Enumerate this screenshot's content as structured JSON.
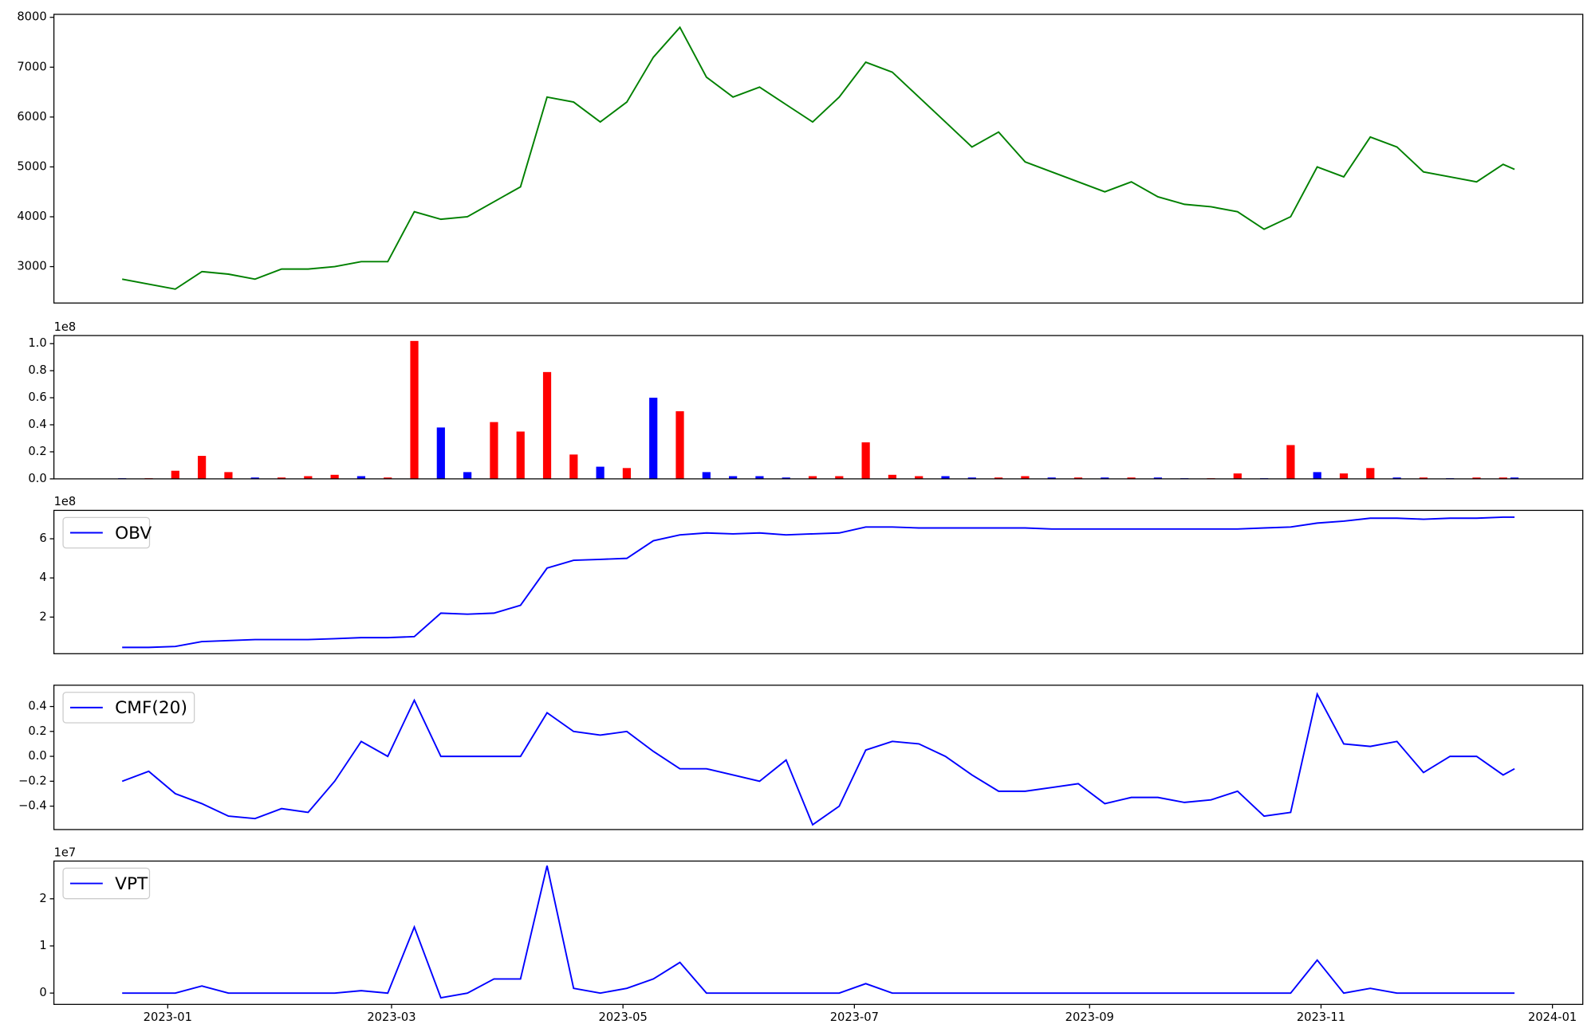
{
  "chart_data": [
    {
      "type": "line",
      "x": [
        -12,
        -5,
        2,
        9,
        16,
        23,
        30,
        37,
        44,
        51,
        58,
        65,
        72,
        79,
        86,
        93,
        100,
        107,
        114,
        121,
        128,
        135,
        142,
        149,
        156,
        163,
        170,
        177,
        184,
        191,
        198,
        205,
        212,
        219,
        226,
        233,
        240,
        247,
        254,
        261,
        268,
        275,
        282,
        289,
        296,
        303,
        310,
        317,
        324,
        331,
        338,
        345,
        352,
        355
      ],
      "series": [
        {
          "color": "#008000",
          "values": [
            2750,
            2650,
            2550,
            2900,
            2850,
            2750,
            2950,
            2950,
            3000,
            3100,
            3100,
            4100,
            3950,
            4000,
            4300,
            4600,
            6400,
            6300,
            5900,
            6300,
            7200,
            7800,
            6800,
            6400,
            6600,
            6250,
            5900,
            6400,
            7100,
            6900,
            6400,
            5900,
            5400,
            5700,
            5100,
            4900,
            4700,
            4500,
            4700,
            4400,
            4250,
            4200,
            4100,
            3750,
            4000,
            5000,
            4800,
            5600,
            5400,
            4900,
            4800,
            4700,
            5050,
            4950
          ]
        }
      ],
      "xlim": [
        -30,
        373
      ],
      "ylim": [
        2270,
        8060
      ],
      "yticks": [
        3000,
        4000,
        5000,
        6000,
        7000,
        8000
      ]
    },
    {
      "type": "bar",
      "x": [
        -12,
        -5,
        2,
        9,
        16,
        23,
        30,
        37,
        44,
        51,
        58,
        65,
        72,
        79,
        86,
        93,
        100,
        107,
        114,
        121,
        128,
        135,
        142,
        149,
        156,
        163,
        170,
        177,
        184,
        191,
        198,
        205,
        212,
        219,
        226,
        233,
        240,
        247,
        254,
        261,
        268,
        275,
        282,
        289,
        296,
        303,
        310,
        317,
        324,
        331,
        338,
        345,
        352,
        355
      ],
      "series": [
        {
          "values": [
            0.005,
            0.005,
            0.06,
            0.17,
            0.05,
            0.01,
            0.01,
            0.02,
            0.03,
            0.02,
            0.01,
            1.02,
            0.38,
            0.05,
            0.42,
            0.35,
            0.79,
            0.18,
            0.09,
            0.08,
            0.6,
            0.5,
            0.05,
            0.02,
            0.02,
            0.01,
            0.02,
            0.02,
            0.27,
            0.03,
            0.02,
            0.02,
            0.01,
            0.01,
            0.02,
            0.01,
            0.01,
            0.01,
            0.01,
            0.01,
            0.005,
            0.005,
            0.04,
            0.005,
            0.25,
            0.05,
            0.04,
            0.08,
            0.01,
            0.01,
            0.005,
            0.01,
            0.01,
            0.01
          ],
          "colors": [
            "#0000ff",
            "#ff0000",
            "#ff0000",
            "#ff0000",
            "#ff0000",
            "#0000ff",
            "#ff0000",
            "#ff0000",
            "#ff0000",
            "#0000ff",
            "#ff0000",
            "#ff0000",
            "#0000ff",
            "#0000ff",
            "#ff0000",
            "#ff0000",
            "#ff0000",
            "#ff0000",
            "#0000ff",
            "#ff0000",
            "#0000ff",
            "#ff0000",
            "#0000ff",
            "#0000ff",
            "#0000ff",
            "#0000ff",
            "#ff0000",
            "#ff0000",
            "#ff0000",
            "#ff0000",
            "#ff0000",
            "#0000ff",
            "#0000ff",
            "#ff0000",
            "#ff0000",
            "#0000ff",
            "#ff0000",
            "#0000ff",
            "#ff0000",
            "#0000ff",
            "#0000ff",
            "#ff0000",
            "#ff0000",
            "#0000ff",
            "#ff0000",
            "#0000ff",
            "#ff0000",
            "#ff0000",
            "#0000ff",
            "#ff0000",
            "#0000ff",
            "#ff0000",
            "#ff0000",
            "#0000ff"
          ]
        }
      ],
      "xlim": [
        -30,
        373
      ],
      "ylim": [
        0,
        1.06
      ],
      "yticks": [
        {
          "value": 0,
          "label": "0.0"
        },
        0.2,
        0.4,
        0.6,
        0.8,
        {
          "value": 1,
          "label": "1.0"
        }
      ],
      "y_offset_label": "1e8"
    },
    {
      "type": "line",
      "x": [
        -12,
        -5,
        2,
        9,
        16,
        23,
        30,
        37,
        44,
        51,
        58,
        65,
        72,
        79,
        86,
        93,
        100,
        107,
        114,
        121,
        128,
        135,
        142,
        149,
        156,
        163,
        170,
        177,
        184,
        191,
        198,
        205,
        212,
        219,
        226,
        233,
        240,
        247,
        254,
        261,
        268,
        275,
        282,
        289,
        296,
        303,
        310,
        317,
        324,
        331,
        338,
        345,
        352,
        355
      ],
      "series": [
        {
          "name": "OBV",
          "color": "#0000ff",
          "values": [
            0.45,
            0.45,
            0.5,
            0.75,
            0.8,
            0.85,
            0.85,
            0.85,
            0.9,
            0.95,
            0.95,
            1.0,
            2.2,
            2.15,
            2.2,
            2.6,
            4.5,
            4.9,
            4.95,
            5.0,
            5.9,
            6.2,
            6.3,
            6.25,
            6.3,
            6.2,
            6.25,
            6.3,
            6.6,
            6.6,
            6.55,
            6.55,
            6.55,
            6.55,
            6.55,
            6.5,
            6.5,
            6.5,
            6.5,
            6.5,
            6.5,
            6.5,
            6.5,
            6.55,
            6.6,
            6.8,
            6.9,
            7.05,
            7.05,
            7.0,
            7.05,
            7.05,
            7.1,
            7.1
          ]
        }
      ],
      "xlim": [
        -30,
        373
      ],
      "ylim": [
        0.13,
        7.45
      ],
      "yticks": [
        2,
        4,
        6
      ],
      "y_offset_label": "1e8",
      "legend": "upper left"
    },
    {
      "type": "line",
      "x": [
        -12,
        -5,
        2,
        9,
        16,
        23,
        30,
        37,
        44,
        51,
        58,
        65,
        72,
        79,
        86,
        93,
        100,
        107,
        114,
        121,
        128,
        135,
        142,
        149,
        156,
        163,
        170,
        177,
        184,
        191,
        198,
        205,
        212,
        219,
        226,
        233,
        240,
        247,
        254,
        261,
        268,
        275,
        282,
        289,
        296,
        303,
        310,
        317,
        324,
        331,
        338,
        345,
        352,
        355
      ],
      "series": [
        {
          "name": "CMF(20)",
          "color": "#0000ff",
          "values": [
            -0.2,
            -0.12,
            -0.3,
            -0.38,
            -0.48,
            -0.5,
            -0.42,
            -0.45,
            -0.2,
            0.12,
            0.0,
            0.45,
            0.0,
            0.0,
            0.0,
            0.0,
            0.35,
            0.2,
            0.17,
            0.2,
            0.04,
            -0.1,
            -0.1,
            -0.15,
            -0.2,
            -0.03,
            -0.55,
            -0.4,
            0.05,
            0.12,
            0.1,
            0.0,
            -0.15,
            -0.28,
            -0.28,
            -0.25,
            -0.22,
            -0.38,
            -0.33,
            -0.33,
            -0.37,
            -0.35,
            -0.28,
            -0.48,
            -0.45,
            0.5,
            0.1,
            0.08,
            0.12,
            -0.13,
            0.0,
            0.0,
            -0.15,
            -0.1
          ]
        }
      ],
      "xlim": [
        -30,
        373
      ],
      "ylim": [
        -0.588,
        0.571
      ],
      "yticks": [
        {
          "value": -0.4,
          "label": "−0.4"
        },
        {
          "value": -0.2,
          "label": "−0.2"
        },
        {
          "value": 0,
          "label": "0.0"
        },
        0.2,
        0.4
      ],
      "legend": "upper left"
    },
    {
      "type": "line",
      "x": [
        -12,
        -5,
        2,
        9,
        16,
        23,
        30,
        37,
        44,
        51,
        58,
        65,
        72,
        79,
        86,
        93,
        100,
        107,
        114,
        121,
        128,
        135,
        142,
        149,
        156,
        163,
        170,
        177,
        184,
        191,
        198,
        205,
        212,
        219,
        226,
        233,
        240,
        247,
        254,
        261,
        268,
        275,
        282,
        289,
        296,
        303,
        310,
        317,
        324,
        331,
        338,
        345,
        352,
        355
      ],
      "series": [
        {
          "name": "VPT",
          "color": "#0000ff",
          "values": [
            0,
            0,
            0,
            0.15,
            0,
            0,
            0,
            0,
            0,
            0.05,
            0,
            1.4,
            -0.1,
            0,
            0.3,
            0.3,
            2.7,
            0.1,
            0,
            0.1,
            0.3,
            0.65,
            0,
            0,
            0,
            0,
            0,
            0,
            0.2,
            0,
            0,
            0,
            0,
            0,
            0,
            0,
            0,
            0,
            0,
            0,
            0,
            0,
            0,
            0,
            0,
            0.7,
            0,
            0.1,
            0,
            0,
            0,
            0,
            0,
            0
          ]
        }
      ],
      "xlim": [
        -30,
        373
      ],
      "ylim": [
        -0.24,
        2.8
      ],
      "yticks": [
        0,
        1,
        2
      ],
      "xticks": [
        {
          "value": 0,
          "label": "2023-01"
        },
        {
          "value": 59,
          "label": "2023-03"
        },
        {
          "value": 120,
          "label": "2023-05"
        },
        {
          "value": 181,
          "label": "2023-07"
        },
        {
          "value": 243,
          "label": "2023-09"
        },
        {
          "value": 304,
          "label": "2023-11"
        },
        {
          "value": 365,
          "label": "2024-01"
        }
      ],
      "y_offset_label": "1e7",
      "legend": "upper left"
    }
  ]
}
